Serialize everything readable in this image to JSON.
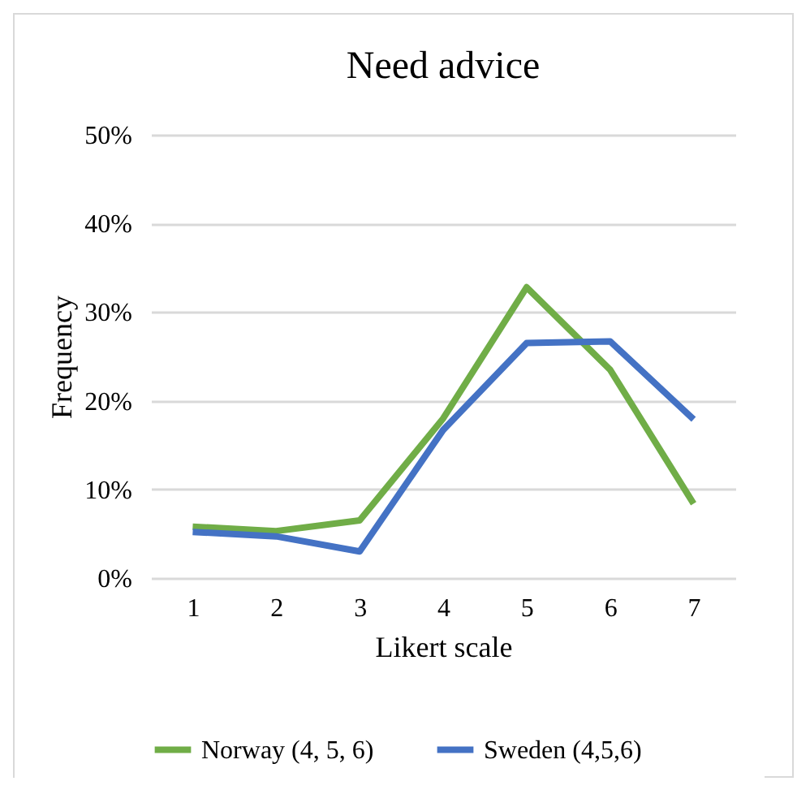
{
  "chart_data": {
    "type": "line",
    "title": "Need advice",
    "xlabel": "Likert scale",
    "ylabel": "Frequency",
    "categories": [
      "1",
      "2",
      "3",
      "4",
      "5",
      "6",
      "7"
    ],
    "series": [
      {
        "name": "Norway (4, 5, 6)",
        "color": "#70ad47",
        "values": [
          5.8,
          5.3,
          6.5,
          18,
          32.8,
          23.5,
          8.4
        ]
      },
      {
        "name": "Sweden (4,5,6)",
        "color": "#4472c4",
        "values": [
          5.2,
          4.7,
          3,
          16.7,
          26.5,
          26.7,
          17.9
        ]
      }
    ],
    "ylim": [
      0,
      50
    ],
    "yticks": [
      {
        "value": 0,
        "label": "0%"
      },
      {
        "value": 10,
        "label": "10%"
      },
      {
        "value": 20,
        "label": "20%"
      },
      {
        "value": 30,
        "label": "30%"
      },
      {
        "value": 40,
        "label": "40%"
      },
      {
        "value": 50,
        "label": "50%"
      }
    ],
    "grid": "y",
    "legend": "bottom",
    "marker": "none",
    "line_style": "solid"
  }
}
